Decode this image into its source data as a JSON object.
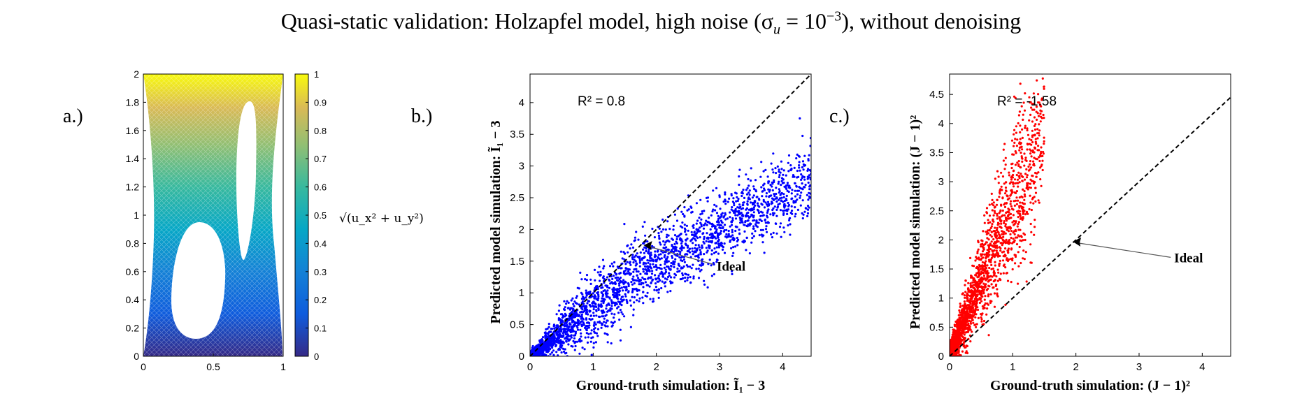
{
  "figure": {
    "title": "Quasi-static validation: Holzapfel model, high noise (σ",
    "title_sub": "u",
    "title_eq": " = 10",
    "title_sup": "−3",
    "title_end": "), without denoising"
  },
  "colors": {
    "blue": "#0000ff",
    "red": "#ff0000",
    "axis": "#000000"
  },
  "chart_data": [
    {
      "panel": "a.)",
      "type": "heatmap",
      "xlim": [
        0,
        1
      ],
      "ylim": [
        0,
        2
      ],
      "x_ticks": [
        "0",
        "0.5",
        "1"
      ],
      "y_ticks": [
        "0",
        "0.2",
        "0.4",
        "0.6",
        "0.8",
        "1",
        "1.2",
        "1.4",
        "1.6",
        "1.8",
        "2"
      ],
      "colorbar": {
        "range": [
          0,
          1
        ],
        "ticks": [
          "0",
          "0.1",
          "0.2",
          "0.3",
          "0.4",
          "0.5",
          "0.6",
          "0.7",
          "0.8",
          "0.9",
          "1"
        ],
        "label": "√(u_x² + u_y²)",
        "colormap": "parula"
      }
    },
    {
      "panel": "b.)",
      "type": "scatter",
      "xlabel": "Ground-truth simulation: Ĩ₁ − 3",
      "ylabel": "Predicted model simulation: Ĩ₁ − 3",
      "xlim": [
        0,
        4.45
      ],
      "ylim": [
        0,
        4.45
      ],
      "x_ticks": [
        0,
        1,
        2,
        3,
        4
      ],
      "y_ticks": [
        0,
        0.5,
        1,
        1.5,
        2,
        2.5,
        3,
        3.5,
        4
      ],
      "annotation": "R² = 0.8",
      "ideal_label": "Ideal",
      "ideal_line": [
        [
          0,
          0
        ],
        [
          4.45,
          4.45
        ]
      ],
      "color": "#0000ff",
      "cloud": {
        "n": 2600,
        "x_max": 4.45,
        "slope": 0.57,
        "spread": 0.28
      }
    },
    {
      "panel": "c.)",
      "type": "scatter",
      "xlabel": "Ground-truth simulation: (J − 1)²",
      "ylabel": "Predicted model simulation: (J − 1)²",
      "xlim": [
        0,
        4.45
      ],
      "ylim": [
        0,
        4.85
      ],
      "x_ticks": [
        0,
        1,
        2,
        3,
        4
      ],
      "y_ticks": [
        0,
        0.5,
        1,
        1.5,
        2,
        2.5,
        3,
        3.5,
        4,
        4.5
      ],
      "annotation": "R² = -1.58",
      "ideal_label": "Ideal",
      "ideal_line": [
        [
          0,
          0
        ],
        [
          4.45,
          4.45
        ]
      ],
      "color": "#ff0000",
      "cloud": {
        "n": 2200,
        "x_max": 1.5,
        "slope": 2.6,
        "spread": 0.55
      }
    }
  ]
}
